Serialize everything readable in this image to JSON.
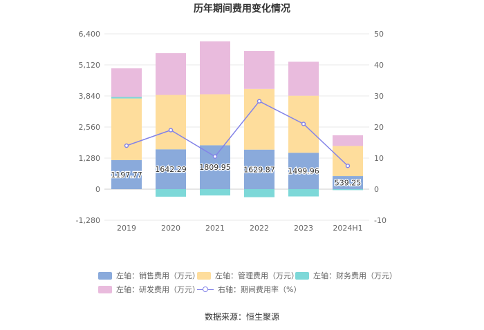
{
  "chart_data": {
    "type": "bar",
    "title": "历年期间费用变化情况",
    "categories": [
      "2019",
      "2020",
      "2021",
      "2022",
      "2023",
      "2024H1"
    ],
    "left_axis": {
      "ylim": [
        -1280,
        6400
      ],
      "ticks": [
        -1280,
        0,
        1280,
        2560,
        3840,
        5120,
        6400
      ],
      "tick_labels": [
        "-1,280",
        "0",
        "1,280",
        "2,560",
        "3,840",
        "5,120",
        "6,400"
      ]
    },
    "right_axis": {
      "ylim": [
        -10,
        50
      ],
      "ticks": [
        -10,
        0,
        10,
        20,
        30,
        40,
        50
      ],
      "tick_labels": [
        "-10",
        "0",
        "10",
        "20",
        "30",
        "40",
        "50"
      ]
    },
    "series": [
      {
        "name": "左轴：销售费用（万元）",
        "axis": "left",
        "type": "bar",
        "color": "#8aaadb",
        "values": [
          1197.77,
          1642.29,
          1809.95,
          1629.87,
          1499.96,
          539.25
        ],
        "labels": [
          "1197.77",
          "1642.29",
          "1809.95",
          "1629.87",
          "1499.96",
          "539.25"
        ]
      },
      {
        "name": "左轴：管理费用（万元）",
        "axis": "left",
        "type": "bar",
        "color": "#fedd9c",
        "values": [
          2540,
          2240,
          2100,
          2500,
          2350,
          1240
        ]
      },
      {
        "name": "左轴：财务费用（万元）",
        "axis": "left",
        "type": "bar",
        "color": "#7dd8d8",
        "values": [
          60,
          -310,
          -260,
          -330,
          -300,
          -40
        ]
      },
      {
        "name": "左轴：研发费用（万元）",
        "axis": "left",
        "type": "bar",
        "color": "#e9bbdd",
        "values": [
          1180,
          1720,
          2180,
          1560,
          1400,
          440
        ]
      },
      {
        "name": "右轴：期间费用率（%）",
        "axis": "right",
        "type": "line",
        "color": "#8383e8",
        "values": [
          14.0,
          19.0,
          10.5,
          28.3,
          21.0,
          7.5
        ]
      }
    ],
    "legend_rows": [
      [
        0,
        1,
        2
      ],
      [
        3,
        4
      ]
    ]
  },
  "source": "数据来源：恒生聚源"
}
